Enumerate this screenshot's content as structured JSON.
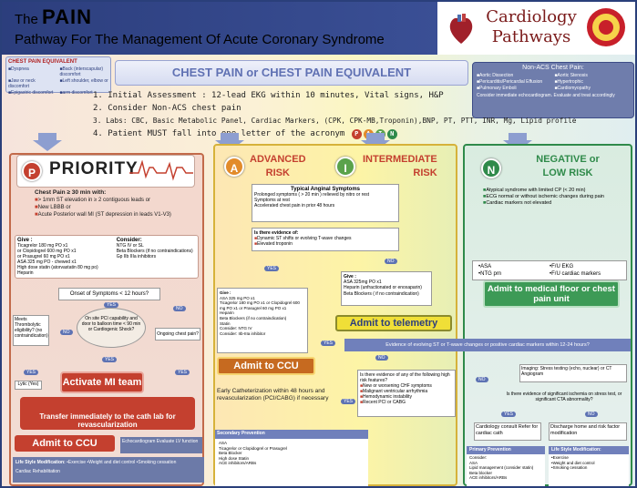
{
  "header": {
    "title_prefix": "The",
    "title_main": "PAIN",
    "subtitle": "Pathway For The Management Of Acute Coronary Syndrome"
  },
  "brand": {
    "name_line1": "Cardiology",
    "name_line2": "Pathways"
  },
  "chest_pain_equiv": {
    "title": "CHEST PAIN EQUIVALENT",
    "items": [
      "Dyspnea",
      "Back (interscapular) discomfort",
      "Jaw or neck discomfort",
      "Left shoulder, elbow or",
      "Epigastric discomfort",
      "arm discomfort"
    ]
  },
  "banner": "CHEST PAIN or CHEST PAIN EQUIVALENT",
  "non_acs": {
    "title": "Non-ACS Chest Pain:",
    "items": [
      "Aortic Dissection",
      "Aortic Stenosis",
      "Pericarditis/Pericardial Effusion",
      "Hypertrophic",
      "Pulmonary Emboli",
      "Cardiomyopathy"
    ],
    "consider": "Consider immediate echocardiogram. Evaluate and treat accordingly"
  },
  "steps": [
    "1. Initial Assessment : 12-lead EKG within 10 minutes, Vital signs, H&P",
    "2. Consider Non-ACS chest pain",
    "3. Labs: CBC, Basic Metabolic Panel, Cardiac Markers, (CPK, CPK-MB,Troponin),BNP, PT, PTT, INR, Mg, Lipid profile",
    "4. Patient MUST fall into one letter of the acronym"
  ],
  "acronym": [
    "P",
    "A",
    "I",
    "N"
  ],
  "colors": {
    "p": "#c4402f",
    "a": "#e28b2a",
    "i": "#5aa24b",
    "n": "#2f8a4a",
    "navy": "#2c3e7d"
  },
  "priority": {
    "letter": "P",
    "title": "PRIORITY",
    "criteria_title": "Chest Pain ≥ 30 min with:",
    "criteria": [
      "> 1mm ST elevation in ≥ 2 contiguous leads or",
      "New LBBB or",
      "Acute Posterior wall MI (ST depression in leads V1-V3)"
    ],
    "give_title": "Give :",
    "give": [
      "Ticagrelor 180 mg PO x1",
      "or Clopidogrel 600 mg PO x1",
      "or Prasugrel 60 mg PO x1",
      "ASA 325 mg PO - chewed x1",
      "High dose statin (atorvastatin 80 mg po)",
      "Heparin"
    ],
    "consider_title": "Consider:",
    "consider": [
      "NTG IV or SL",
      "Beta Blockers (if no contraindications)",
      "Gp IIb IIIa inhibitors"
    ],
    "onset": "Onset of Symptoms < 12 hours?",
    "thromb": "Meets Thrombolytic eligibility? (no contraindication)",
    "onsite": "On site PCI capability and door to balloon time < 90 min or Cardiogenic Shock?",
    "ongoing": "Ongoing chest pain?",
    "lytic": "Lytic (Yes)",
    "activate": "Activate MI team",
    "transfer": "Transfer immediately to the cath lab for revascularization",
    "admit": "Admit to CCU",
    "echo": "Echocardiogram Evaluate LV function",
    "life_title": "Life Style Modification:",
    "life": [
      "Exercise",
      "Weight and diet control",
      "Smoking cessation"
    ],
    "rehab": "Cardiac Rehabilitation"
  },
  "labels": {
    "yes": "YES",
    "no": "NO"
  },
  "advanced": {
    "letter": "A",
    "title_line1": "ADVANCED",
    "title_line2": "RISK",
    "typical_title": "Typical Anginal Symptoms",
    "typical": [
      "Prolonged symptoms ( > 20 min ) relieved by nitro or rest",
      "Symptoms at rest",
      "Accelerated chest pain in prior 48 hours"
    ],
    "st_title": "Is there evidence of:",
    "st": [
      "Dynamic ST shifts or evolving T-wave changes",
      "Elevated troponin"
    ],
    "give_title": "Give :",
    "give": [
      "ASA 325 mg PO x1",
      "Ticagrelor 180 mg PO x1 or Clopidogrel 600 mg PO x1 or Prasugrel 60 mg PO x1",
      "Heparin",
      "Beta Blockers (if no contraindication)",
      "Statin",
      "Consider: NTG IV",
      "Consider: IIb-IIIa inhibitor"
    ],
    "admit": "Admit to CCU",
    "early": "Early Catheterization within 48 hours and revascularization (PCI/CABG) if necessary",
    "sec_title": "Secondary Prevention",
    "sec": [
      "ASA",
      "Ticagrelor or Clopidogrel or Prasugrel",
      "Beta Blocker",
      "High dose Statin",
      "ACE inhibitors/ARBs"
    ]
  },
  "intermediate": {
    "letter": "I",
    "title_line1": "INTERMEDIATE",
    "title_line2": "RISK",
    "give_title": "Give :",
    "give": [
      "ASA 325mg PO x1",
      "Heparin (unfractionated or enoxaparin)",
      "Beta Blockers ( if no contraindication)"
    ],
    "admit": "Admit to telemetry",
    "evolving": "Evidence of evolving ST or T-wave changes or positive cardiac markers within 12-24 hours?",
    "high_title": "Is there evidence of any of the following high risk features?",
    "high": [
      "New or worsening CHF symptoms",
      "Malignant ventricular arrhythmia",
      "Hemodynamic instability",
      "Recent PCI or CABG"
    ]
  },
  "negative": {
    "letter": "N",
    "title_line1": "NEGATIVE or",
    "title_line2": "LOW RISK",
    "criteria": [
      "Atypical syndrome with limited CP (< 20 min)",
      "ECG normal or without ischemic changes during pain",
      "Cardiac markers not elevated"
    ],
    "give": [
      "ASA",
      "NTG prn",
      "F/U EKG",
      "F/U cardiac markers"
    ],
    "admit": "Admit to medical floor or chest pain unit",
    "imaging": "Imaging: Stress testing (echo, nuclear) or CT Angiogram",
    "sig": "Is there evidence of significant ischemia on stress test, or significant CTA abnormality?",
    "consult": "Cardiology consult Refer for cardiac cath",
    "discharge": "Discharge home and risk factor modification",
    "prim_title": "Primary Prevention",
    "prim": [
      "Consider:",
      "ASA",
      "Lipid management (consider statin)",
      "Beta blocker",
      "ACE inhibitors/ARBs"
    ],
    "life_title": "Life Style Modification:",
    "life": [
      "Exercise",
      "Weight and diet control",
      "Smoking cessation"
    ]
  }
}
